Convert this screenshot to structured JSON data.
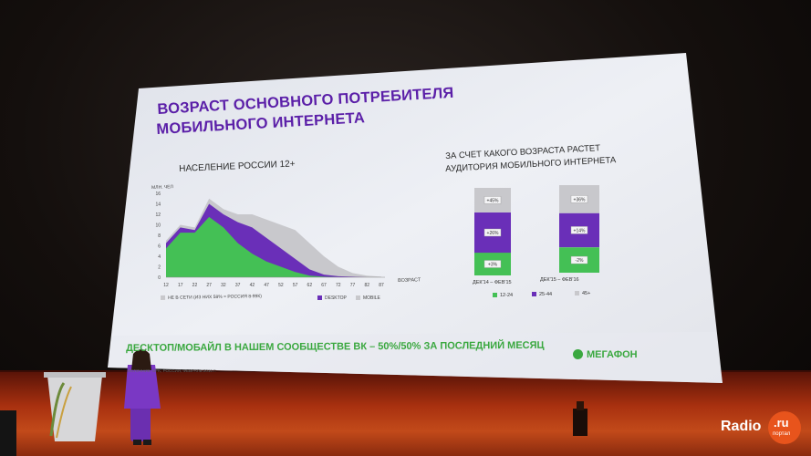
{
  "slide": {
    "title_line1": "ВОЗРАСТ ОСНОВНОГО ПОТРЕБИТЕЛЯ",
    "title_line2": "МОБИЛЬНОГО ИНТЕРНЕТА",
    "bottom_text": "ДЕСКТОП/МОБАЙЛ В НАШЕМ СООБЩЕСТВЕ ВК – 50%/50% ЗА ПОСЛЕДНИЙ МЕСЯЦ",
    "source": "ИСТОЧНИК: GFK, РОССИЯ, ФЕВРАЛЬ 2016 Г.",
    "brand": "МЕГАФОН",
    "colors": {
      "green": "#44c055",
      "purple": "#6a2fb8",
      "grey": "#c8c8cc",
      "title": "#5b1fa8"
    }
  },
  "chart_left": {
    "title": "НАСЕЛЕНИЕ РОССИИ 12+",
    "ylabel": "МЛН. ЧЕЛ",
    "xlabel": "ВОЗРАСТ",
    "legend": {
      "offline": "НЕ В СЕТИ (ИЗ НИХ 58% = РОССИЯ 8-99К)",
      "desktop": "DESKTOP",
      "mobile": "MOBILE"
    }
  },
  "chart_data": [
    {
      "type": "area",
      "title": "НАСЕЛЕНИЕ РОССИИ 12+",
      "ylabel": "МЛН. ЧЕЛ",
      "xlabel": "ВОЗРАСТ",
      "x": [
        12,
        17,
        22,
        27,
        32,
        37,
        42,
        47,
        52,
        57,
        62,
        67,
        72,
        77,
        82,
        87
      ],
      "yticks": [
        0,
        2,
        4,
        6,
        8,
        10,
        12,
        14,
        16
      ],
      "ylim": [
        0,
        16
      ],
      "series": [
        {
          "name": "MOBILE",
          "color": "#44c055",
          "values": [
            5.5,
            8.5,
            8.5,
            11.5,
            9.5,
            6.5,
            4.5,
            3,
            2,
            1,
            0.3,
            0.1,
            0,
            0,
            0,
            0
          ]
        },
        {
          "name": "DESKTOP",
          "color": "#6a2fb8",
          "values": [
            6.5,
            9.5,
            9,
            14,
            12,
            10.5,
            9.5,
            7.5,
            5.5,
            3.5,
            1.5,
            0.5,
            0.2,
            0.1,
            0,
            0
          ]
        },
        {
          "name": "НЕ В СЕТИ (ИЗ НИХ 58% = РОССИЯ 8-99К)",
          "color": "#c8c8cc",
          "values": [
            7,
            10,
            9.5,
            15,
            13,
            12,
            12,
            11,
            10,
            9,
            6.5,
            4,
            2,
            0.8,
            0.3,
            0.1
          ]
        }
      ]
    },
    {
      "type": "bar",
      "title": "ЗА СЧЕТ КАКОГО ВОЗРАСТА РАСТЕТ АУДИТОРИЯ МОБИЛЬНОГО ИНТЕРНЕТА",
      "categories": [
        "ДЕК'14 – ФЕВ'15",
        "ДЕК'15 – ФЕВ'16"
      ],
      "series": [
        {
          "name": "12-24",
          "color": "#44c055",
          "values": [
            26,
            29
          ],
          "labels": [
            "+3%",
            "-2%"
          ]
        },
        {
          "name": "25-44",
          "color": "#6a2fb8",
          "values": [
            46,
            39
          ],
          "labels": [
            "+26%",
            "+14%"
          ]
        },
        {
          "name": "45+",
          "color": "#c8c8cc",
          "values": [
            28,
            32
          ],
          "labels": [
            "+45%",
            "+36%"
          ]
        }
      ]
    }
  ],
  "chart_right": {
    "title_line1": "ЗА СЧЕТ КАКОГО ВОЗРАСТА РАСТЕТ",
    "title_line2": "АУДИТОРИЯ МОБИЛЬНОГО ИНТЕРНЕТА"
  },
  "watermark": {
    "text": "Radio",
    "badge": ".ru",
    "sub": "портал"
  }
}
